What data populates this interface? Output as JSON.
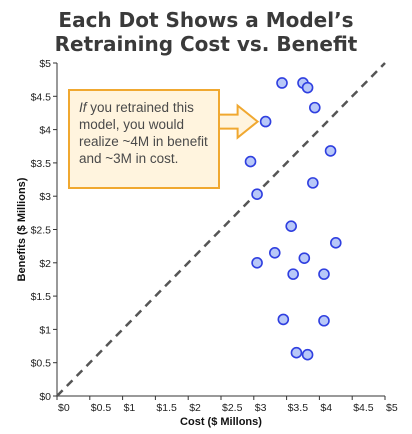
{
  "chart_data": {
    "type": "scatter",
    "title_lines": [
      "Each Dot Shows a Model’s",
      "Retraining Cost vs. Benefit"
    ],
    "xlabel": "Cost ($ Millons)",
    "ylabel": "Benefits ($ Millions)",
    "xlim": [
      0,
      5
    ],
    "ylim": [
      0,
      5
    ],
    "x_ticks": [
      "$0",
      "$0.5",
      "$1",
      "$1.5",
      "$2",
      "$2.5",
      "$3",
      "$3.5",
      "$4",
      "$4.5",
      "$5"
    ],
    "y_ticks": [
      "$0",
      "$0.5",
      "$1",
      "$1.5",
      "$2",
      "$2.5",
      "$3",
      "$3.5",
      "$4",
      "$4.5",
      "$5"
    ],
    "grid": false,
    "reference_line": {
      "from": [
        0,
        0
      ],
      "to": [
        5,
        5
      ],
      "style": "dashed"
    },
    "points": [
      {
        "x": 3.43,
        "y": 4.7
      },
      {
        "x": 3.75,
        "y": 4.7
      },
      {
        "x": 3.82,
        "y": 4.63
      },
      {
        "x": 3.93,
        "y": 4.33
      },
      {
        "x": 3.18,
        "y": 4.12
      },
      {
        "x": 4.17,
        "y": 3.68
      },
      {
        "x": 2.95,
        "y": 3.52
      },
      {
        "x": 3.9,
        "y": 3.2
      },
      {
        "x": 3.05,
        "y": 3.03
      },
      {
        "x": 3.57,
        "y": 2.55
      },
      {
        "x": 4.25,
        "y": 2.3
      },
      {
        "x": 3.32,
        "y": 2.15
      },
      {
        "x": 3.77,
        "y": 2.07
      },
      {
        "x": 3.05,
        "y": 2.0
      },
      {
        "x": 3.6,
        "y": 1.83
      },
      {
        "x": 4.07,
        "y": 1.83
      },
      {
        "x": 3.45,
        "y": 1.15
      },
      {
        "x": 4.07,
        "y": 1.13
      },
      {
        "x": 3.65,
        "y": 0.65
      },
      {
        "x": 3.82,
        "y": 0.62
      }
    ],
    "annotation": {
      "italic_word": "If",
      "text": " you retrained this model, you would realize ~4M in benefit and ~3M in cost.",
      "target_point": {
        "x": 3.18,
        "y": 4.12
      }
    },
    "colors": {
      "point_fill": "#b8c8f8",
      "point_stroke": "#2f3fe0",
      "callout_fill": "#fff4de",
      "callout_border": "#f0a830",
      "reference_line": "#555555"
    }
  }
}
